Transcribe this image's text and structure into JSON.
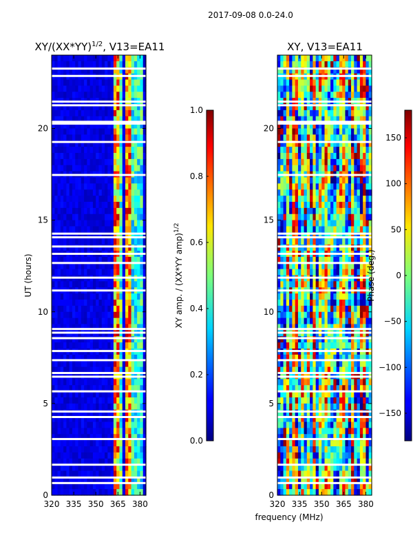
{
  "figure": {
    "supertitle": "2017-09-08 0.0-24.0",
    "shared_xlabel": "frequency (MHz)"
  },
  "chart_data": [
    {
      "type": "heatmap",
      "title": "XY/(XX*YY)",
      "title_exponent": "1/2",
      "title_suffix": ", V13=EA11",
      "xlabel": "",
      "ylabel": "UT (hours)",
      "xlim": [
        320,
        384
      ],
      "ylim": [
        0,
        24
      ],
      "xticks": [
        "320",
        "335",
        "350",
        "365",
        "380"
      ],
      "yticks": [
        "0",
        "5",
        "10",
        "15",
        "20"
      ],
      "colorbar": {
        "label": "XY amp. / (XX*YY amp)",
        "label_exponent": "1/2",
        "range": [
          0.0,
          1.0
        ],
        "ticks": [
          "0.0",
          "0.2",
          "0.4",
          "0.6",
          "0.8",
          "1.0"
        ],
        "colormap": "jet"
      }
    },
    {
      "type": "heatmap",
      "title": "XY, V13=EA11",
      "xlabel": "frequency (MHz)",
      "ylabel": "",
      "xlim": [
        320,
        384
      ],
      "ylim": [
        0,
        24
      ],
      "xticks": [
        "320",
        "335",
        "350",
        "365",
        "380"
      ],
      "yticks": [
        "0",
        "5",
        "10",
        "15",
        "20"
      ],
      "colorbar": {
        "label": "Phase (deg.)",
        "range": [
          -180,
          180
        ],
        "ticks": [
          "−150",
          "−100",
          "−50",
          "0",
          "50",
          "100",
          "150"
        ],
        "colormap": "jet"
      }
    }
  ]
}
